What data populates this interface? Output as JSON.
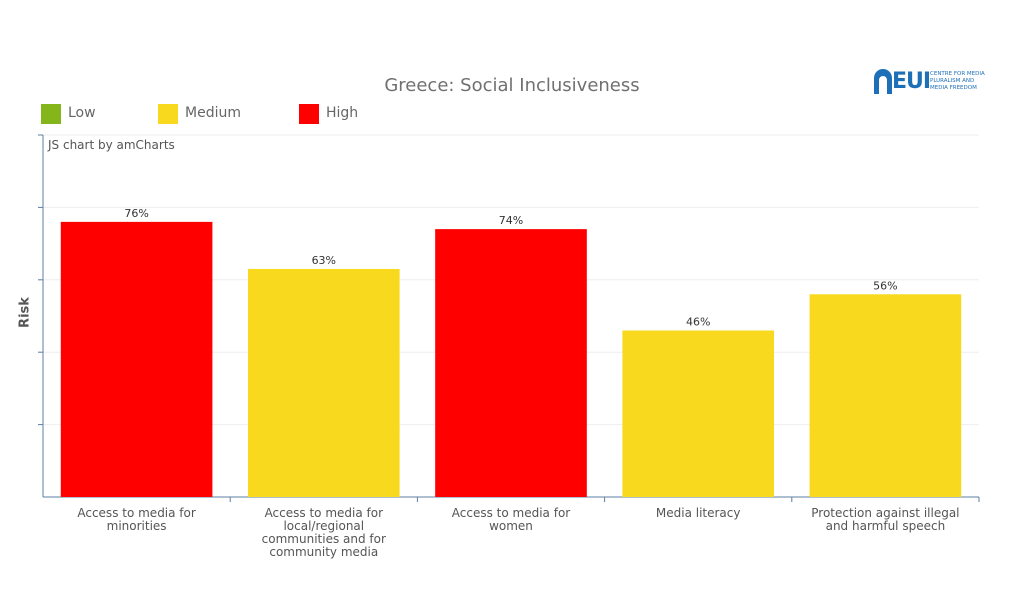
{
  "chart_data": {
    "type": "bar",
    "title": "Greece: Social Inclusiveness",
    "ylabel": "Risk",
    "xlabel": "",
    "ylim": [
      0,
      100
    ],
    "grid": true,
    "legend_position": "top-left",
    "legend": [
      {
        "label": "Low",
        "color": "#84b51b"
      },
      {
        "label": "Medium",
        "color": "#f9d91e"
      },
      {
        "label": "High",
        "color": "#ff0000"
      }
    ],
    "categories": [
      "Access to media for minorities",
      "Access to media for local/regional communities and for community media",
      "Access to media for women",
      "Media literacy",
      "Protection against illegal and harmful speech"
    ],
    "values": [
      76,
      63,
      74,
      46,
      56
    ],
    "value_labels": [
      "76%",
      "63%",
      "74%",
      "46%",
      "56%"
    ],
    "risk_levels": [
      "High",
      "Medium",
      "High",
      "Medium",
      "Medium"
    ],
    "colors": [
      "#ff0000",
      "#f9d91e",
      "#ff0000",
      "#f9d91e",
      "#f9d91e"
    ]
  },
  "credit": "JS chart by amCharts",
  "logo": {
    "text": "EUI",
    "subtitle": "CENTRE FOR MEDIA\nPLURALISM AND\nMEDIA FREEDOM"
  }
}
